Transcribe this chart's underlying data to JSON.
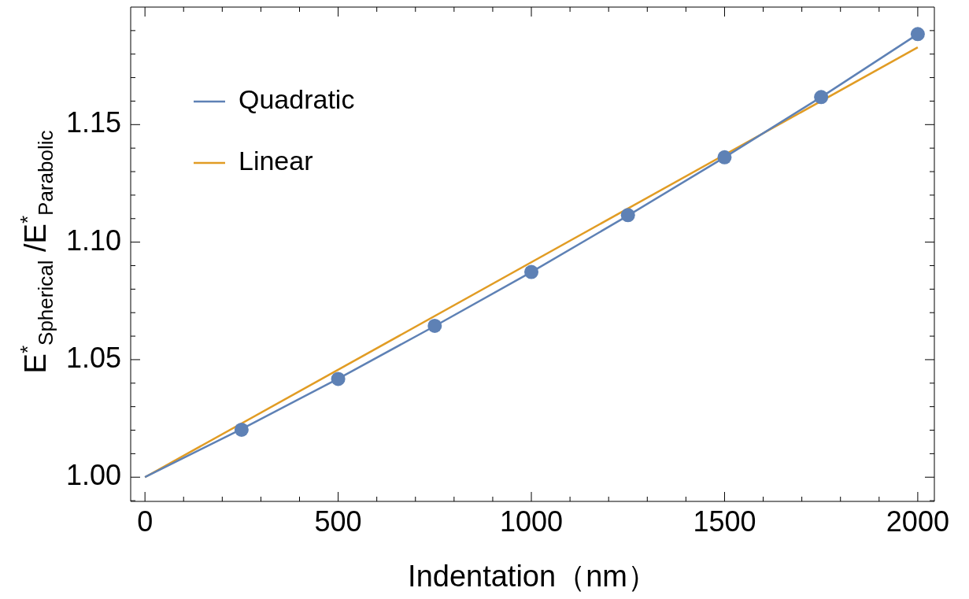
{
  "chart_data": {
    "type": "line",
    "xlabel": "Indentation（nm）",
    "ylabel": "E$^{*}$$_{Spherical}$ /E$^{*}$$_{Parabolic}$",
    "xlim": [
      -37,
      2043
    ],
    "ylim": [
      0.9897,
      1.2
    ],
    "xticks": [
      0,
      {
        "value": 100,
        "label": null
      },
      {
        "value": 200,
        "label": null
      },
      {
        "value": 300,
        "label": null
      },
      {
        "value": 400,
        "label": null
      },
      500,
      {
        "value": 600,
        "label": null
      },
      {
        "value": 700,
        "label": null
      },
      {
        "value": 800,
        "label": null
      },
      {
        "value": 900,
        "label": null
      },
      1000,
      {
        "value": 1100,
        "label": null
      },
      {
        "value": 1200,
        "label": null
      },
      {
        "value": 1300,
        "label": null
      },
      {
        "value": 1400,
        "label": null
      },
      1500,
      {
        "value": 1600,
        "label": null
      },
      {
        "value": 1700,
        "label": null
      },
      {
        "value": 1800,
        "label": null
      },
      {
        "value": 1900,
        "label": null
      },
      2000
    ],
    "yticks": [
      {
        "value": 0.99,
        "label": null
      },
      {
        "value": 1,
        "label": "1.00"
      },
      {
        "value": 1.01,
        "label": null
      },
      {
        "value": 1.02,
        "label": null
      },
      {
        "value": 1.03,
        "label": null
      },
      {
        "value": 1.04,
        "label": null
      },
      {
        "value": 1.05,
        "label": "1.05"
      },
      {
        "value": 1.06,
        "label": null
      },
      {
        "value": 1.07,
        "label": null
      },
      {
        "value": 1.08,
        "label": null
      },
      {
        "value": 1.09,
        "label": null
      },
      {
        "value": 1.1,
        "label": "1.10"
      },
      {
        "value": 1.11,
        "label": null
      },
      {
        "value": 1.12,
        "label": null
      },
      {
        "value": 1.13,
        "label": null
      },
      {
        "value": 1.14,
        "label": null
      },
      {
        "value": 1.15,
        "label": "1.15"
      },
      {
        "value": 1.16,
        "label": null
      },
      {
        "value": 1.17,
        "label": null
      },
      {
        "value": 1.18,
        "label": null
      },
      {
        "value": 1.19,
        "label": null
      }
    ],
    "grid": false,
    "legend": "top left",
    "line_style": "solid",
    "series": [
      {
        "type": "scatter",
        "marker": "circle",
        "color": "#5e81b5",
        "x": [
          250,
          500,
          750,
          1000,
          1250,
          1500,
          1750,
          2000
        ],
        "values": [
          1.0202,
          1.0418,
          1.0644,
          1.0873,
          1.1115,
          1.1361,
          1.1617,
          1.1885
        ]
      },
      {
        "name": "Quadratic",
        "marker": "none",
        "color": "#5e81b5",
        "x": [
          0,
          250,
          500,
          750,
          1000,
          1250,
          1500,
          1750,
          2000
        ],
        "values": [
          1.0,
          1.0205,
          1.0419,
          1.0643,
          1.0873,
          1.1113,
          1.1361,
          1.1617,
          1.1885
        ]
      },
      {
        "name": "Linear",
        "marker": "none",
        "color": "#e19c24",
        "x": [
          0,
          2000
        ],
        "values": [
          1.0,
          1.1829
        ]
      }
    ]
  }
}
